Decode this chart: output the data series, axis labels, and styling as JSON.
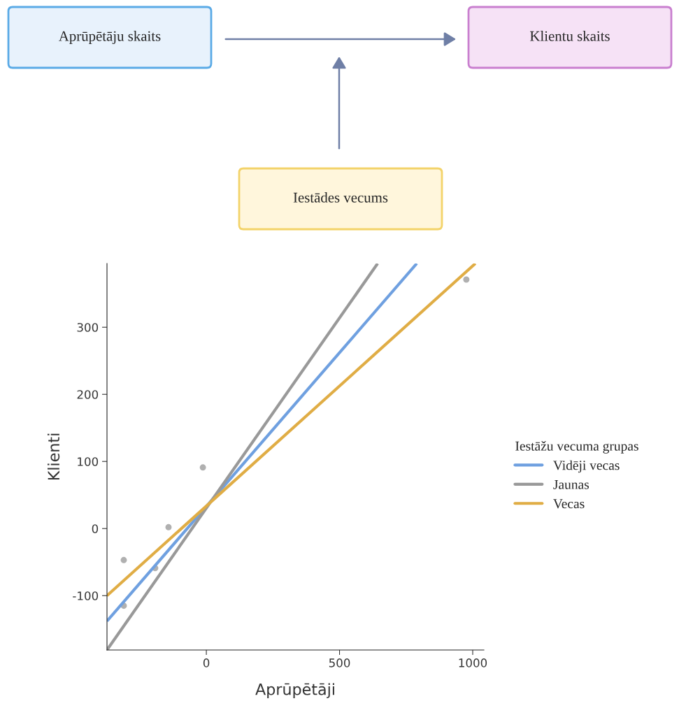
{
  "chart_data": [
    {
      "type": "other",
      "annotations": [
        "Aprūpētāju skaits",
        "Klientu skaits",
        "Iestādes vecums"
      ]
    },
    {
      "type": "line",
      "xlabel": "Aprūpētāji",
      "ylabel": "Klienti",
      "legend_title": "Iestāžu vecuma grupas",
      "legend": "right",
      "grid": false,
      "xlim": [
        -373,
        1042
      ],
      "ylim": [
        -181,
        395
      ],
      "xticks": [
        0,
        500,
        1000
      ],
      "yticks": [
        -100,
        0,
        100,
        200,
        300
      ],
      "series": [
        {
          "name": "Vidēji vecas",
          "color": "#6fa0e0",
          "x": [
            -373,
            790
          ],
          "values": [
            -138,
            395
          ]
        },
        {
          "name": "Jaunas",
          "color": "#999999",
          "x": [
            -373,
            643
          ],
          "values": [
            -181,
            395
          ]
        },
        {
          "name": "Vecas",
          "color": "#e0ad45",
          "x": [
            -373,
            1010
          ],
          "values": [
            -100,
            395
          ]
        },
        {
          "type": "scatter",
          "color": "#b0b0b0",
          "marker": "circle",
          "x": [
            -310,
            -310,
            -192,
            -142,
            -13,
            976
          ],
          "values": [
            -47,
            -115,
            -59,
            2,
            91,
            371
          ]
        }
      ]
    }
  ]
}
